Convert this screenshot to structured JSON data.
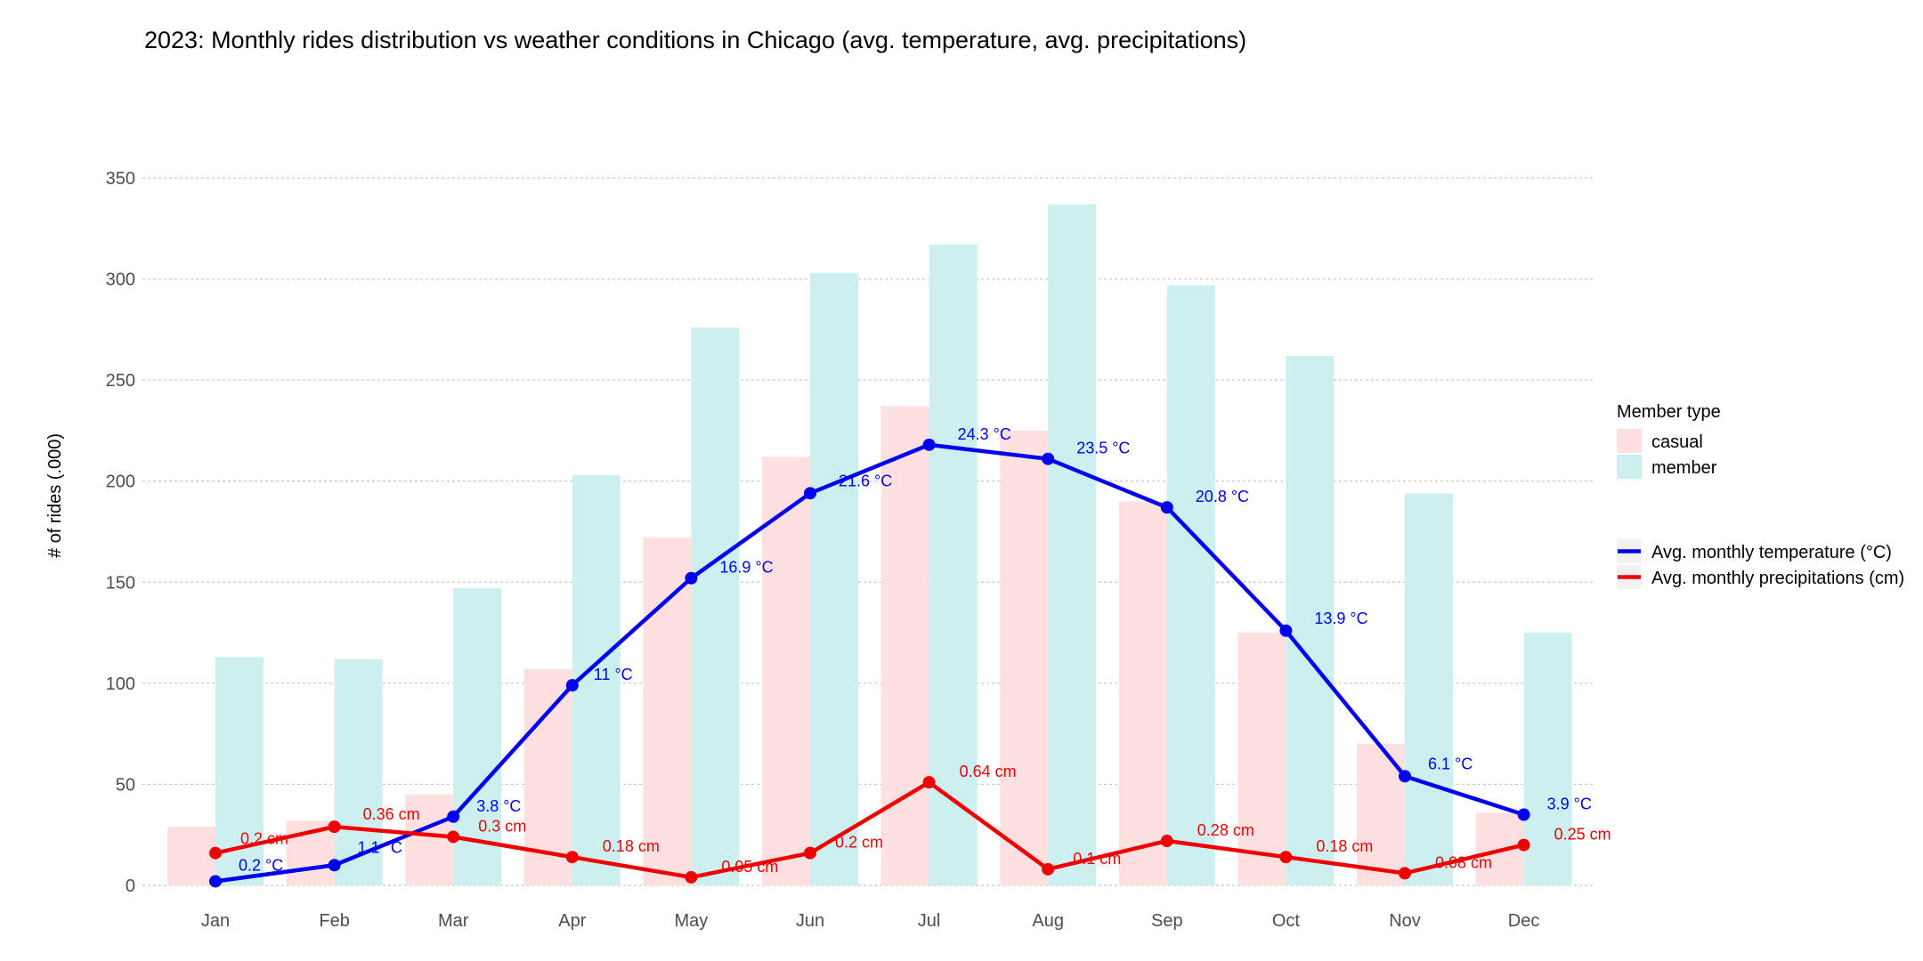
{
  "chart_data": {
    "type": "bar",
    "title": "2023: Monthly rides distribution vs weather conditions in Chicago (avg. temperature, avg. precipitations)",
    "ylabel": "# of rides (.000)",
    "xlabel": "",
    "ylim": [
      0,
      350
    ],
    "yticks": [
      0,
      50,
      100,
      150,
      200,
      250,
      300,
      350
    ],
    "ytick_labels": [
      "0",
      "50",
      "100",
      "150",
      "200",
      "250",
      "300",
      "350"
    ],
    "grid": true,
    "legend_position": "right",
    "categories": [
      "Jan",
      "Feb",
      "Mar",
      "Apr",
      "May",
      "Jun",
      "Jul",
      "Aug",
      "Sep",
      "Oct",
      "Nov",
      "Dec"
    ],
    "series": [
      {
        "name": "casual",
        "type": "bar",
        "color": "#fde0df",
        "values": [
          29,
          32,
          45,
          107,
          172,
          212,
          237,
          225,
          190,
          125,
          70,
          36
        ]
      },
      {
        "name": "member",
        "type": "bar",
        "color": "#ccf0f0",
        "values": [
          113,
          112,
          147,
          203,
          276,
          303,
          317,
          337,
          297,
          262,
          194,
          125
        ]
      }
    ],
    "lines": [
      {
        "name": "Avg. monthly temperature (°C)",
        "color": "#0000ee",
        "y_plot": [
          2,
          10,
          34,
          99,
          152,
          194,
          218,
          211,
          187,
          126,
          54,
          35
        ],
        "labels": [
          "0.2 °C",
          "1.1 °C",
          "3.8 °C",
          "11 °C",
          "16.9 °C",
          "21.6 °C",
          "24.3 °C",
          "23.5 °C",
          "20.8 °C",
          "13.9 °C",
          "6.1 °C",
          "3.9 °C"
        ]
      },
      {
        "name": "Avg. monthly precipitations (cm)",
        "color": "#ee0000",
        "y_plot": [
          16,
          29,
          24,
          14,
          4,
          16,
          51,
          8,
          22,
          14,
          6,
          20
        ],
        "labels": [
          "0.2 cm",
          "0.36 cm",
          "0.3 cm",
          "0.18 cm",
          "0.05 cm",
          "0.2 cm",
          "0.64 cm",
          "0.1 cm",
          "0.28 cm",
          "0.18 cm",
          "0.08 cm",
          "0.25 cm"
        ]
      }
    ],
    "legend": {
      "fill_title": "Member type",
      "fill_items": [
        "casual",
        "member"
      ],
      "line_items": [
        "Avg. monthly temperature (°C)",
        "Avg. monthly precipitations (cm)"
      ]
    }
  }
}
